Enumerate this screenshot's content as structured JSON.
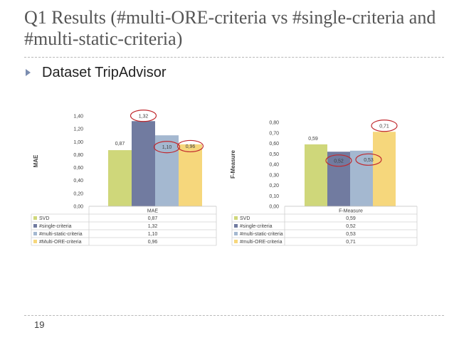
{
  "slide": {
    "title": "Q1 Results (#multi-ORE-criteria vs #single-criteria and #multi-static-criteria)",
    "bullet": "Dataset TripAdvisor",
    "page_number": "19"
  },
  "chart_data": [
    {
      "type": "bar",
      "categories": [
        "MAE"
      ],
      "series": [
        {
          "name": "SVD",
          "values": [
            0.87
          ],
          "color": "#cfd77a",
          "label": "0,87"
        },
        {
          "name": "#single-criteria",
          "values": [
            1.32
          ],
          "color": "#717ba0",
          "label": "1,32"
        },
        {
          "name": "#multi-static-criteria",
          "values": [
            1.1
          ],
          "color": "#a4b8d0",
          "label": "1,10"
        },
        {
          "name": "#Multi-ORE-criteria",
          "values": [
            0.96
          ],
          "color": "#f6d77c",
          "label": "0,96"
        }
      ],
      "ylabel": "MAE",
      "ylim": [
        0,
        1.4
      ],
      "yticks": [
        "0,00",
        "0,20",
        "0,40",
        "0,60",
        "0,80",
        "1,00",
        "1,20",
        "1,40"
      ],
      "highlighted": [
        "#single-criteria",
        "#multi-static-criteria",
        "#Multi-ORE-criteria"
      ],
      "highlight_color": "#c0282d"
    },
    {
      "type": "bar",
      "categories": [
        "F-Measure"
      ],
      "series": [
        {
          "name": "SVD",
          "values": [
            0.59
          ],
          "color": "#cfd77a",
          "label": "0,59"
        },
        {
          "name": "#single-criteria",
          "values": [
            0.52
          ],
          "color": "#717ba0",
          "label": "0,52"
        },
        {
          "name": "#multi-static-criteria",
          "values": [
            0.53
          ],
          "color": "#a4b8d0",
          "label": "0,53"
        },
        {
          "name": "#multi-ORE-criteria",
          "values": [
            0.71
          ],
          "color": "#f6d77c",
          "label": "0,71"
        }
      ],
      "ylabel": "F-Measure",
      "ylim": [
        0,
        0.8
      ],
      "yticks": [
        "0,00",
        "0,10",
        "0,20",
        "0,30",
        "0,40",
        "0,50",
        "0,60",
        "0,70",
        "0,80"
      ],
      "highlighted": [
        "#single-criteria",
        "#multi-static-criteria",
        "#multi-ORE-criteria"
      ],
      "highlight_color": "#c0282d"
    }
  ]
}
